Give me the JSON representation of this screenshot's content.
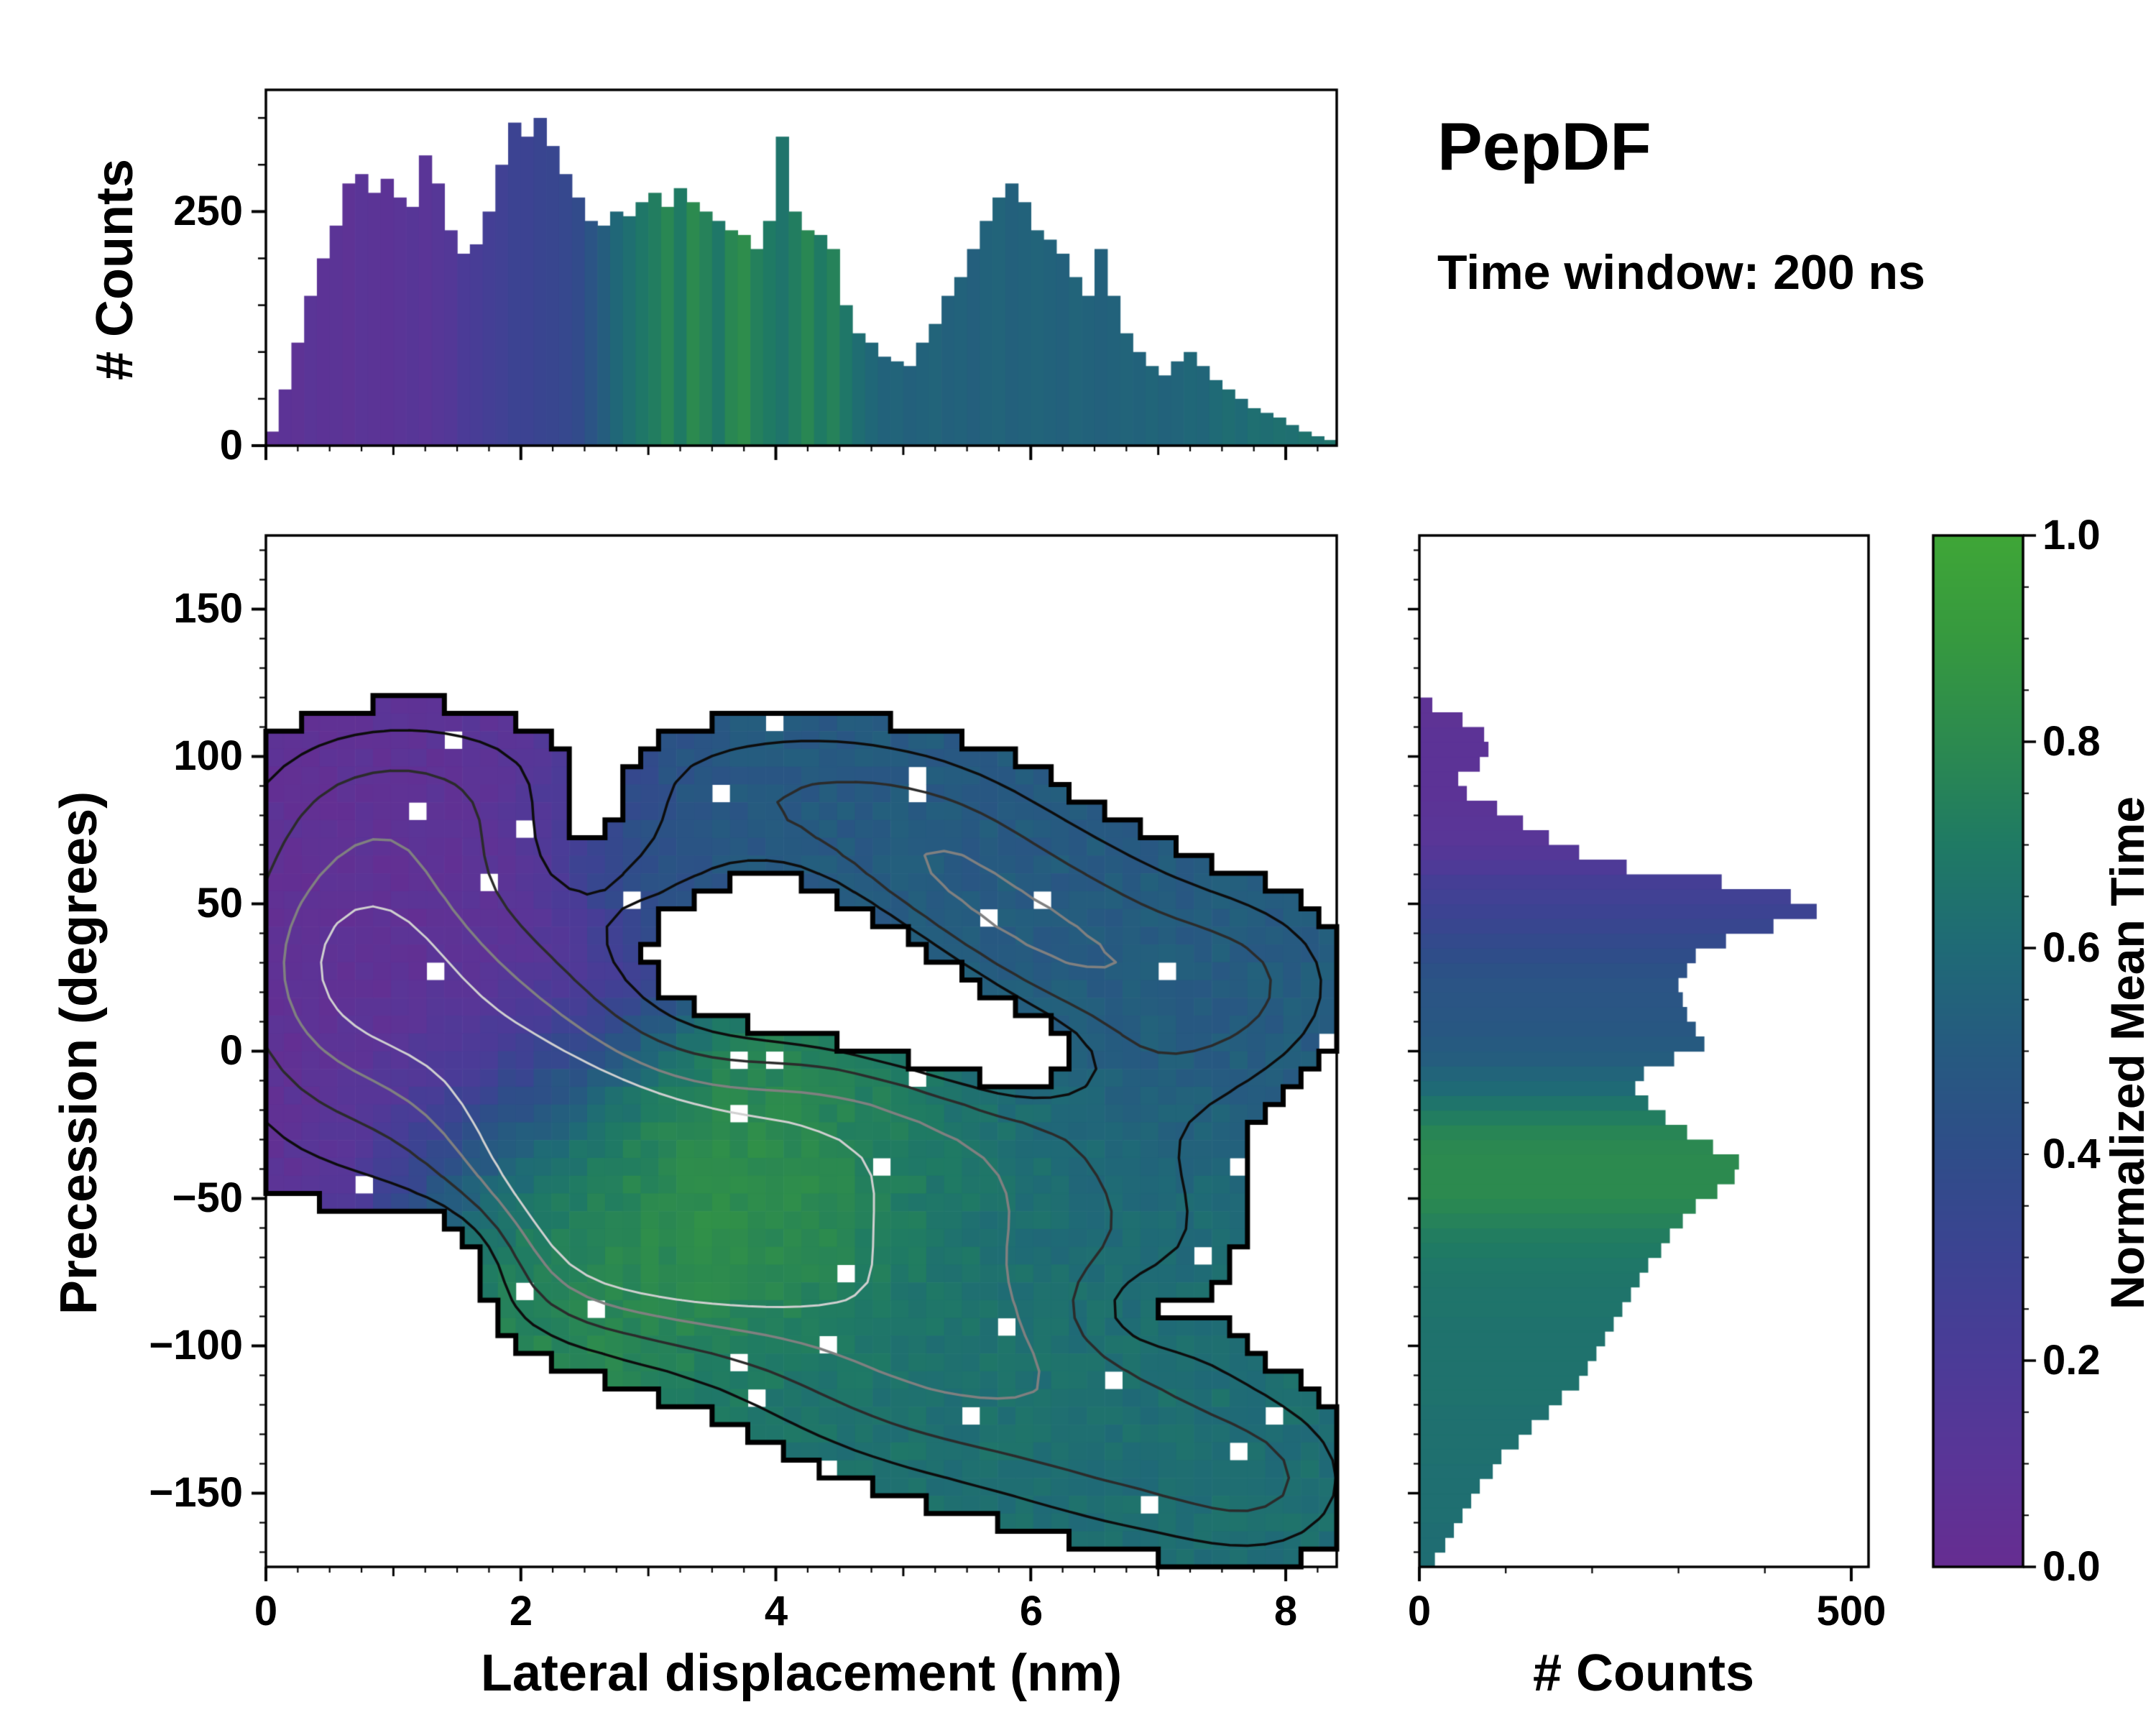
{
  "figure": {
    "title": "PepDF",
    "subtitle": "Time window: 200 ns",
    "background_color": "#ffffff"
  },
  "chart_data": {
    "type": "2d-histogram-with-marginal-histograms",
    "colormap": {
      "name": "purple-blue-green",
      "stops": [
        [
          0.0,
          "#662d91"
        ],
        [
          0.1,
          "#5a3597"
        ],
        [
          0.2,
          "#4b3b97"
        ],
        [
          0.3,
          "#3c4392"
        ],
        [
          0.4,
          "#2f4d89"
        ],
        [
          0.5,
          "#265a80"
        ],
        [
          0.6,
          "#1f6a76"
        ],
        [
          0.7,
          "#1f7a64"
        ],
        [
          0.8,
          "#2c8a4f"
        ],
        [
          0.9,
          "#36993f"
        ],
        [
          1.0,
          "#3fa637"
        ]
      ]
    },
    "top_histogram": {
      "type": "bar",
      "ylabel": "# Counts",
      "xlim": [
        0,
        8.4
      ],
      "ylim": [
        0,
        380
      ],
      "bin_width": 0.1,
      "ytick_values": [
        250,
        0
      ],
      "ytick_labels": [
        "250",
        "0"
      ],
      "counts": [
        15,
        60,
        110,
        160,
        200,
        235,
        280,
        290,
        270,
        285,
        265,
        255,
        310,
        280,
        230,
        205,
        215,
        250,
        300,
        345,
        330,
        350,
        320,
        290,
        265,
        240,
        235,
        250,
        245,
        260,
        270,
        255,
        275,
        260,
        250,
        240,
        230,
        225,
        210,
        240,
        330,
        250,
        230,
        225,
        210,
        150,
        120,
        110,
        95,
        90,
        85,
        110,
        130,
        160,
        180,
        210,
        240,
        265,
        280,
        260,
        230,
        220,
        205,
        180,
        160,
        210,
        160,
        120,
        100,
        85,
        75,
        90,
        100,
        85,
        70,
        60,
        50,
        40,
        35,
        30,
        22,
        15,
        10,
        6
      ],
      "mean_time": [
        0.06,
        0.08,
        0.07,
        0.1,
        0.08,
        0.09,
        0.07,
        0.1,
        0.09,
        0.08,
        0.1,
        0.12,
        0.1,
        0.13,
        0.15,
        0.2,
        0.22,
        0.25,
        0.27,
        0.3,
        0.3,
        0.32,
        0.33,
        0.35,
        0.38,
        0.45,
        0.52,
        0.58,
        0.63,
        0.68,
        0.72,
        0.78,
        0.7,
        0.8,
        0.75,
        0.68,
        0.78,
        0.82,
        0.74,
        0.7,
        0.66,
        0.72,
        0.78,
        0.7,
        0.75,
        0.68,
        0.62,
        0.58,
        0.55,
        0.56,
        0.54,
        0.55,
        0.56,
        0.54,
        0.55,
        0.53,
        0.55,
        0.56,
        0.54,
        0.55,
        0.56,
        0.55,
        0.54,
        0.56,
        0.55,
        0.54,
        0.55,
        0.56,
        0.55,
        0.57,
        0.55,
        0.56,
        0.58,
        0.57,
        0.6,
        0.62,
        0.6,
        0.63,
        0.62,
        0.64,
        0.63,
        0.65,
        0.64,
        0.66
      ]
    },
    "right_histogram": {
      "type": "bar-horizontal",
      "xlabel": "# Counts",
      "xlim": [
        0,
        520
      ],
      "ylim": [
        -175,
        175
      ],
      "bin_width_degrees": 5,
      "xtick_values": [
        0,
        500
      ],
      "xtick_labels": [
        "0",
        "500"
      ],
      "counts_ascending_y": [
        18,
        30,
        40,
        50,
        60,
        70,
        85,
        95,
        115,
        130,
        150,
        165,
        185,
        195,
        205,
        215,
        225,
        235,
        245,
        255,
        265,
        280,
        290,
        305,
        320,
        345,
        365,
        370,
        340,
        310,
        285,
        265,
        250,
        260,
        295,
        330,
        320,
        310,
        305,
        300,
        310,
        320,
        355,
        410,
        460,
        430,
        350,
        240,
        185,
        150,
        120,
        90,
        55,
        45,
        70,
        80,
        75,
        50,
        15,
        0,
        0,
        0,
        0,
        0,
        0,
        0,
        0,
        0,
        0,
        0
      ],
      "mean_time": [
        0.62,
        0.62,
        0.62,
        0.63,
        0.63,
        0.63,
        0.63,
        0.64,
        0.64,
        0.64,
        0.64,
        0.65,
        0.65,
        0.65,
        0.65,
        0.65,
        0.65,
        0.66,
        0.66,
        0.67,
        0.68,
        0.7,
        0.72,
        0.75,
        0.78,
        0.8,
        0.8,
        0.8,
        0.79,
        0.77,
        0.72,
        0.66,
        0.6,
        0.56,
        0.52,
        0.5,
        0.48,
        0.47,
        0.46,
        0.45,
        0.43,
        0.4,
        0.37,
        0.33,
        0.3,
        0.27,
        0.24,
        0.18,
        0.14,
        0.11,
        0.1,
        0.09,
        0.08,
        0.08,
        0.08,
        0.08,
        0.08,
        0.07,
        0.07,
        0.07,
        0.07,
        0.07,
        0.07,
        0.07,
        0.07,
        0.07,
        0.07,
        0.07,
        0.07,
        0.07
      ]
    },
    "main_heatmap": {
      "type": "heatmap",
      "xlabel": "Lateral displacement (nm)",
      "ylabel": "Precession (degrees)",
      "xlim": [
        0,
        8.4
      ],
      "ylim": [
        -175,
        175
      ],
      "xtick_values": [
        0,
        2,
        4,
        6,
        8
      ],
      "xtick_labels": [
        "0",
        "2",
        "4",
        "6",
        "8"
      ],
      "ytick_values": [
        150,
        100,
        50,
        0,
        -50,
        -100,
        -150
      ],
      "ytick_labels": [
        "150",
        "100",
        "50",
        "0",
        "−50",
        "−100",
        "−150"
      ],
      "color_label": "Normalized Mean Time",
      "grid": {
        "nx": 60,
        "ny": 58
      },
      "mask_threshold": 0.5,
      "contour_levels": [
        [
          0.85,
          "#0d0d0d",
          3.5
        ],
        [
          1.4,
          "#2b2b2b",
          3.5
        ],
        [
          2.0,
          "#808080",
          3.5
        ],
        [
          2.5,
          "#d0d0d0",
          3.0
        ]
      ],
      "density_blobs_comment": "each blob: [x_nm, y_deg, sigma_x, sigma_y, amplitude, normalized_mean_time (null = hole)]",
      "density_blobs": [
        [
          0.85,
          38,
          0.75,
          30,
          1.6,
          0.04
        ],
        [
          1.8,
          5,
          0.8,
          30,
          1.5,
          0.1
        ],
        [
          1.2,
          88,
          0.95,
          22,
          1.1,
          0.07
        ],
        [
          0.35,
          10,
          0.7,
          45,
          1.0,
          0.06
        ],
        [
          2.1,
          -25,
          0.7,
          28,
          1.0,
          0.45
        ],
        [
          4.2,
          86,
          1.05,
          20,
          1.3,
          0.5
        ],
        [
          3.1,
          55,
          0.5,
          15,
          0.7,
          0.48
        ],
        [
          5.9,
          42,
          0.85,
          25,
          1.5,
          0.5
        ],
        [
          6.8,
          10,
          0.95,
          30,
          1.2,
          0.52
        ],
        [
          7.7,
          25,
          0.6,
          20,
          0.8,
          0.5
        ],
        [
          5.2,
          65,
          0.6,
          18,
          0.8,
          0.5
        ],
        [
          2.85,
          -35,
          0.75,
          25,
          1.7,
          0.87
        ],
        [
          3.85,
          -52,
          0.85,
          25,
          1.8,
          0.85
        ],
        [
          3.1,
          -78,
          0.9,
          20,
          1.2,
          0.8
        ],
        [
          4.4,
          -15,
          0.75,
          20,
          1.1,
          0.75
        ],
        [
          2.3,
          -60,
          0.6,
          20,
          0.9,
          0.72
        ],
        [
          4.8,
          -95,
          1.0,
          28,
          1.4,
          0.66
        ],
        [
          6.0,
          -115,
          1.0,
          26,
          1.2,
          0.63
        ],
        [
          7.2,
          -140,
          0.85,
          22,
          1.1,
          0.62
        ],
        [
          6.3,
          -60,
          0.95,
          24,
          1.1,
          0.6
        ],
        [
          5.4,
          -35,
          0.7,
          20,
          0.9,
          0.65
        ],
        [
          7.9,
          -150,
          0.5,
          18,
          0.7,
          0.63
        ],
        [
          3.9,
          38,
          0.5,
          13,
          -1.3,
          null
        ],
        [
          4.6,
          26,
          0.5,
          13,
          -1.4,
          null
        ],
        [
          5.3,
          12,
          0.5,
          13,
          -1.4,
          null
        ],
        [
          6.0,
          -1,
          0.45,
          12,
          -1.1,
          null
        ],
        [
          1.55,
          -68,
          0.45,
          14,
          -0.9,
          null
        ],
        [
          2.6,
          80,
          0.4,
          16,
          -0.5,
          null
        ],
        [
          6.8,
          -88,
          0.4,
          12,
          -0.6,
          null
        ]
      ]
    },
    "colorbar": {
      "label": "Normalized Mean Time",
      "tick_values": [
        1.0,
        0.8,
        0.6,
        0.4,
        0.2,
        0.0
      ],
      "tick_labels": [
        "1.0",
        "0.8",
        "0.6",
        "0.4",
        "0.2",
        "0.0"
      ],
      "range": [
        0.0,
        1.0
      ]
    }
  }
}
